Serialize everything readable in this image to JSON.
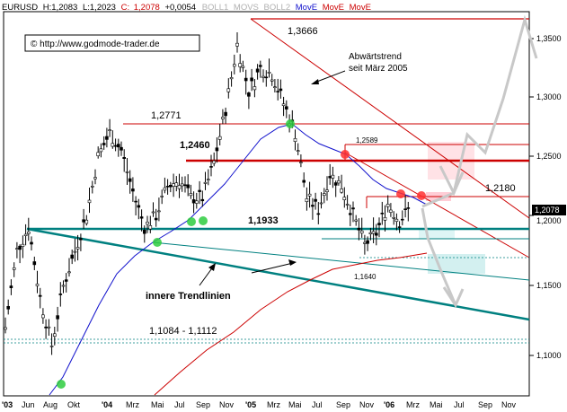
{
  "header": {
    "symbol": "EURUSD",
    "high_text": "H:1,2083",
    "low_text": "L:1,2023",
    "close_label": "C:",
    "close_value": "1,2078",
    "change": "+0,0054",
    "indicators": [
      {
        "label": "BOLL1",
        "color": "#b0b0b0"
      },
      {
        "label": "MOVS",
        "color": "#b0b0b0"
      },
      {
        "label": "BOLL2",
        "color": "#b0b0b0"
      },
      {
        "label": "MovE",
        "color": "#1010cc"
      },
      {
        "label": "MovE",
        "color": "#cc0000"
      },
      {
        "label": "MovE",
        "color": "#cc0000"
      }
    ]
  },
  "copyright": "© http://www.godmode-trader.de",
  "annotations": {
    "high_label": "1,3666",
    "trend_label_line1": "Abwärtstrend",
    "trend_label_line2": "seit März 2005",
    "resistance_1": "1,2771",
    "resistance_2": "1,2589",
    "resistance_3": "1,2460",
    "resistance_4": "1,2180",
    "support_1": "1,1933",
    "support_low": "1,1640",
    "support_zone": "1,1084 - 1,1112",
    "trendlines_label": "innere Trendlinien"
  },
  "current_price_tag": "1,2078",
  "colors": {
    "candles": "#000000",
    "blue_ma": "#1010cc",
    "red_ma": "#cc0000",
    "resistance": "#cc0000",
    "support": "#008080",
    "projection": "#c8c8c8",
    "marker_green": "#2ecc40",
    "marker_red": "#ff3030"
  },
  "chart_data": {
    "type": "line",
    "title": "EURUSD",
    "ylim": [
      1.08,
      1.37
    ],
    "yticks": [
      "1,3500",
      "1,3000",
      "1,2500",
      "1,2000",
      "1,1500",
      "1,1000"
    ],
    "xticks": [
      "'03",
      "Jun",
      "Aug",
      "Okt",
      "'04",
      "Mrz",
      "Mai",
      "Jul",
      "Sep",
      "Nov",
      "'05",
      "Mrz",
      "Mai",
      "Jul",
      "Sep",
      "Nov",
      "'06",
      "Mrz",
      "Mai",
      "Jul",
      "Sep",
      "Nov"
    ],
    "close": {
      "points": [
        [
          "2003-04",
          1.105
        ],
        [
          "2003-05",
          1.17
        ],
        [
          "2003-06",
          1.19
        ],
        [
          "2003-07",
          1.13
        ],
        [
          "2003-08",
          1.09
        ],
        [
          "2003-09",
          1.14
        ],
        [
          "2003-10",
          1.17
        ],
        [
          "2003-11",
          1.2
        ],
        [
          "2003-12",
          1.25
        ],
        [
          "2004-01",
          1.27
        ],
        [
          "2004-02",
          1.255
        ],
        [
          "2004-03",
          1.22
        ],
        [
          "2004-04",
          1.19
        ],
        [
          "2004-05",
          1.2
        ],
        [
          "2004-06",
          1.225
        ],
        [
          "2004-07",
          1.23
        ],
        [
          "2004-08",
          1.215
        ],
        [
          "2004-09",
          1.215
        ],
        [
          "2004-10",
          1.245
        ],
        [
          "2004-11",
          1.29
        ],
        [
          "2004-12",
          1.345
        ],
        [
          "2005-01",
          1.305
        ],
        [
          "2005-02",
          1.325
        ],
        [
          "2005-03",
          1.32
        ],
        [
          "2005-04",
          1.295
        ],
        [
          "2005-05",
          1.27
        ],
        [
          "2005-06",
          1.215
        ],
        [
          "2005-07",
          1.205
        ],
        [
          "2005-08",
          1.235
        ],
        [
          "2005-09",
          1.225
        ],
        [
          "2005-10",
          1.2
        ],
        [
          "2005-11",
          1.175
        ],
        [
          "2005-12",
          1.185
        ],
        [
          "2006-01",
          1.21
        ],
        [
          "2006-02",
          1.195
        ],
        [
          "2006-03",
          1.208
        ]
      ]
    },
    "levels": [
      {
        "label": "1,3666",
        "value": 1.3666,
        "kind": "resistance"
      },
      {
        "label": "1,2771",
        "value": 1.2771,
        "kind": "resistance"
      },
      {
        "label": "1,2589",
        "value": 1.2589,
        "kind": "resistance"
      },
      {
        "label": "1,2460",
        "value": 1.246,
        "kind": "resistance"
      },
      {
        "label": "1,2180",
        "value": 1.218,
        "kind": "resistance"
      },
      {
        "label": "1,1933",
        "value": 1.1933,
        "kind": "support"
      },
      {
        "label": "1,1640",
        "value": 1.164,
        "kind": "support"
      },
      {
        "label": "1,1084 - 1,1112",
        "value": 1.1098,
        "kind": "support"
      }
    ],
    "last_price": 1.2078
  }
}
